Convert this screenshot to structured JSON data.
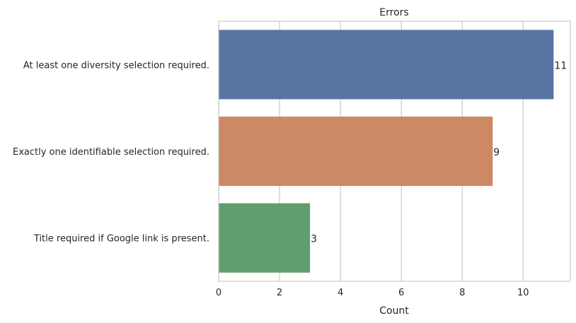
{
  "chart_data": {
    "type": "bar",
    "orientation": "horizontal",
    "title": "Errors",
    "xlabel": "Count",
    "ylabel": "",
    "categories": [
      "At least one diversity selection required.",
      "Exactly one identifiable selection required.",
      "Title required if Google link is present."
    ],
    "values": [
      11,
      9,
      3
    ],
    "data_labels": [
      "11",
      "9",
      "3"
    ],
    "colors": [
      "#5875a4",
      "#cc8963",
      "#5f9e6e"
    ],
    "xlim": [
      0,
      11.55
    ],
    "xticks": [
      0,
      2,
      4,
      6,
      8,
      10
    ],
    "grid": "x",
    "legend": "none"
  }
}
